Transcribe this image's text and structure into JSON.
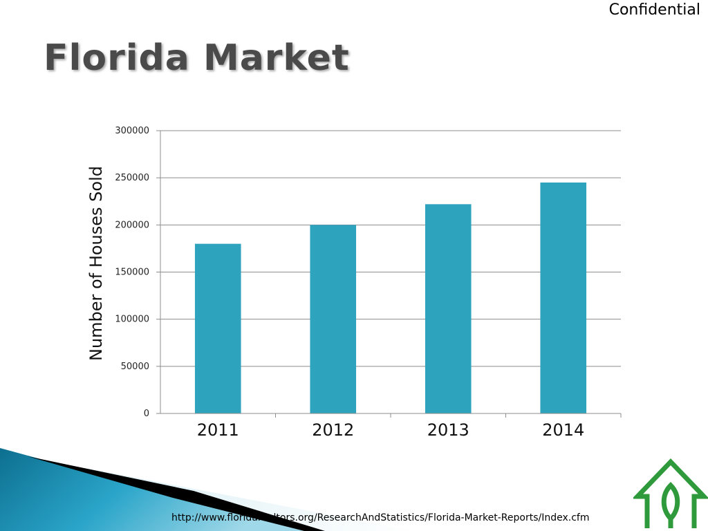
{
  "header": {
    "confidential_label": "Confidential",
    "title": "Florida Market"
  },
  "footer": {
    "source_url": "http://www.floridarealtors.org/ResearchAndStatistics/Florida-Market-Reports/Index.cfm"
  },
  "colors": {
    "bar": "#2ea3bd",
    "grid": "#8c8c8c",
    "logo": "#2f9a3b",
    "title": "#4a4a4a"
  },
  "icons": [
    "green-house-leaf-logo-icon"
  ],
  "chart_data": {
    "type": "bar",
    "title": "",
    "xlabel": "",
    "ylabel": "Number of Houses Sold",
    "categories": [
      "2011",
      "2012",
      "2013",
      "2014"
    ],
    "values": [
      180000,
      200000,
      222000,
      245000
    ],
    "ylim": [
      0,
      300000
    ],
    "yticks": [
      "0",
      "50000",
      "100000",
      "150000",
      "200000",
      "250000",
      "300000"
    ],
    "grid": true,
    "legend": "none"
  }
}
